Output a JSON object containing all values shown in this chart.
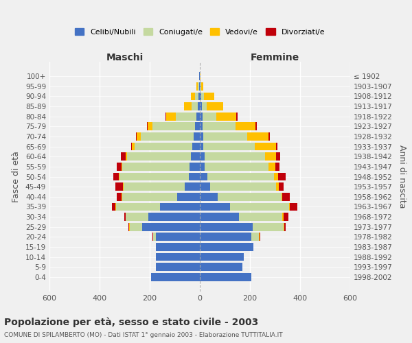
{
  "age_groups": [
    "0-4",
    "5-9",
    "10-14",
    "15-19",
    "20-24",
    "25-29",
    "30-34",
    "35-39",
    "40-44",
    "45-49",
    "50-54",
    "55-59",
    "60-64",
    "65-69",
    "70-74",
    "75-79",
    "80-84",
    "85-89",
    "90-94",
    "95-99",
    "100+"
  ],
  "birth_years": [
    "1998-2002",
    "1993-1997",
    "1988-1992",
    "1983-1987",
    "1978-1982",
    "1973-1977",
    "1968-1972",
    "1963-1967",
    "1958-1962",
    "1953-1957",
    "1948-1952",
    "1943-1947",
    "1938-1942",
    "1933-1937",
    "1928-1932",
    "1923-1927",
    "1918-1922",
    "1913-1917",
    "1908-1912",
    "1903-1907",
    "≤ 1902"
  ],
  "maschi": {
    "celibi": [
      195,
      175,
      175,
      175,
      175,
      230,
      205,
      160,
      90,
      60,
      45,
      40,
      35,
      30,
      25,
      18,
      15,
      8,
      5,
      3,
      2
    ],
    "coniugati": [
      0,
      0,
      0,
      0,
      10,
      50,
      90,
      175,
      220,
      245,
      275,
      270,
      255,
      230,
      210,
      170,
      80,
      25,
      15,
      5,
      0
    ],
    "vedovi": [
      0,
      0,
      0,
      0,
      2,
      2,
      2,
      2,
      2,
      2,
      2,
      3,
      5,
      10,
      18,
      20,
      40,
      30,
      15,
      5,
      0
    ],
    "divorziati": [
      0,
      0,
      0,
      0,
      2,
      2,
      5,
      15,
      20,
      30,
      22,
      18,
      20,
      5,
      3,
      2,
      2,
      0,
      0,
      0,
      0
    ]
  },
  "femmine": {
    "nubili": [
      205,
      170,
      175,
      215,
      205,
      210,
      155,
      120,
      70,
      40,
      30,
      20,
      20,
      15,
      15,
      12,
      10,
      8,
      5,
      2,
      0
    ],
    "coniugate": [
      0,
      0,
      0,
      0,
      30,
      125,
      175,
      235,
      255,
      265,
      265,
      255,
      240,
      205,
      175,
      130,
      55,
      20,
      12,
      3,
      0
    ],
    "vedove": [
      0,
      0,
      0,
      0,
      3,
      3,
      3,
      5,
      5,
      10,
      18,
      25,
      45,
      85,
      85,
      80,
      80,
      65,
      40,
      8,
      2
    ],
    "divorziate": [
      0,
      0,
      0,
      0,
      3,
      5,
      20,
      30,
      30,
      20,
      30,
      18,
      15,
      5,
      5,
      5,
      5,
      0,
      0,
      0,
      0
    ]
  },
  "colors": {
    "celibi": "#4472c4",
    "coniugati": "#c5d9a0",
    "vedovi": "#ffc000",
    "divorziati": "#c0000a"
  },
  "xlim": 600,
  "title": "Popolazione per età, sesso e stato civile - 2003",
  "subtitle": "COMUNE DI SPILAMBERTO (MO) - Dati ISTAT 1° gennaio 2003 - Elaborazione TUTTITALIA.IT",
  "xlabel_left": "Maschi",
  "xlabel_right": "Femmine",
  "ylabel_left": "Fasce di età",
  "ylabel_right": "Anni di nascita",
  "legend_labels": [
    "Celibi/Nubili",
    "Coniugati/e",
    "Vedovi/e",
    "Divorziati/e"
  ],
  "background_color": "#f0f0f0"
}
